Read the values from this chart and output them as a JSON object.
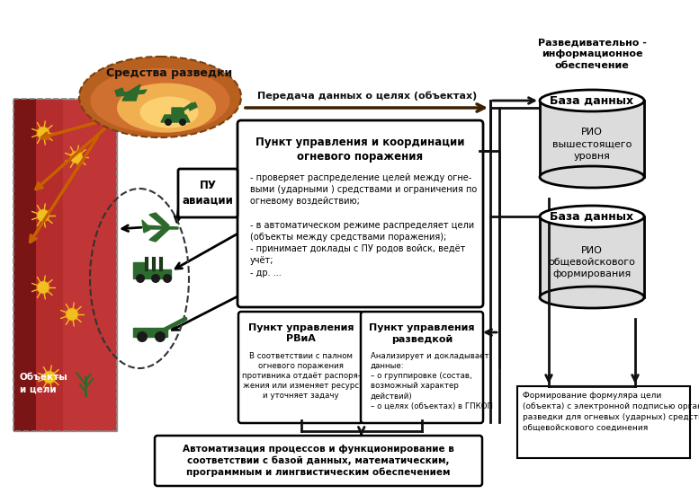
{
  "bg_color": "#ffffff",
  "label_razved": "Разведивательно -\nинформационное\nобеспечение",
  "db1_top_text": "База данных",
  "db1_bottom_text": "РИО\nвышестоящего\nуровня",
  "db2_top_text": "База данных",
  "db2_bottom_text": "РИО\nобщевойскового\nформирования",
  "box_main_title": "Пункт управления и координации\nогневого поражения",
  "box_main_text": "- проверяет распределение целей между огне-\nвыми (ударными ) средствами и ограничения по\nогневому воздействию;\n\n- в автоматическом режиме распределяет цели\n(объекты между средствами поражения);\n- принимает доклады с ПУ родов войск, ведёт\nучёт;\n- др. ...",
  "box_pu_avia": "ПУ\nавиации",
  "box_rvia_title": "Пункт управления\nРВиА",
  "box_rvia_text": "В соответствии с палном\nогневого поражения\nпротивника отдаёт распоря-\nжения или изменяет ресурс\nи уточняет задачу",
  "box_razvedka_title": "Пункт управления\nразведкой",
  "box_razvedka_text": "Анализирует и докладывает\nданные:\n– о группировке (состав,\nвозможный характер\nдействий)\n– о целях (объектах) в ГПКОП",
  "box_bottom_text": "Автоматизация процессов и функционирование в\nсоответствии с базой данных, математическим,\nпрограммным и лингвистическим обеспечением",
  "box_formirovanie_text": "Формирование формуляра цели\n(объекта) с электронной подписью органа\nразведки для огневых (ударных) средств\nобщевойскового соединения",
  "arrow_label": "Передача данных о целях (объектах)",
  "label_obekty": "Объекты\nи цели",
  "sredstva_label": "Средства разведки",
  "colors": {
    "box_border": "#1a1a1a",
    "box_fill": "#ffffff",
    "arrow_orange": "#c86000",
    "arrow_black": "#1a1a1a",
    "db_fill_body": "#e8e8e8",
    "db_fill_top": "#ffffff",
    "ellipse_outer": "#c07030",
    "ellipse_inner_edge": "#e09040",
    "ellipse_center": "#f5c060",
    "combat_dark": "#7a1010",
    "combat_mid": "#c03030",
    "combat_light": "#d04040",
    "yellow_star": "#f0c020",
    "green_icon": "#2d6a2d",
    "text_black": "#000000",
    "text_white": "#ffffff"
  }
}
